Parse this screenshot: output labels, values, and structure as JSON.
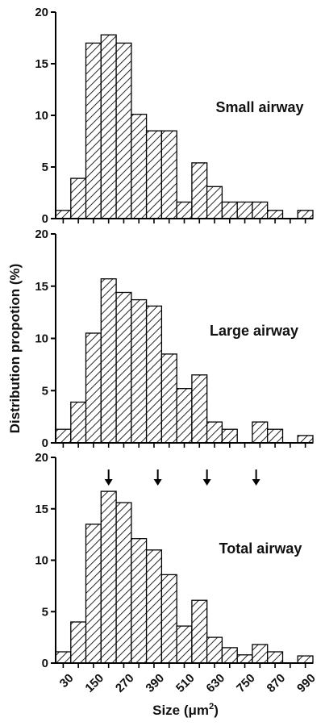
{
  "y_axis_title": "Distribution propotion (%)",
  "x_axis_title": {
    "prefix": "Size (",
    "unit": "μm",
    "power": "2",
    "suffix": ")"
  },
  "chart_data": [
    {
      "type": "bar",
      "panel_label": "Small airway",
      "xlabel": "Size (μm2)",
      "ylabel": "Distribution propotion (%)",
      "ylim": [
        0,
        20
      ],
      "yticks": [
        "0",
        "5",
        "10",
        "15",
        "20"
      ],
      "x": [
        30,
        90,
        150,
        210,
        270,
        330,
        390,
        450,
        510,
        570,
        630,
        690,
        750,
        810,
        870,
        930,
        990
      ],
      "values": [
        0.8,
        3.9,
        17.0,
        17.8,
        17.0,
        10.1,
        8.5,
        8.5,
        1.6,
        5.4,
        3.1,
        1.6,
        1.6,
        1.6,
        0.8,
        0,
        0.8
      ],
      "grid": false
    },
    {
      "type": "bar",
      "panel_label": "Large airway",
      "xlabel": "Size (μm2)",
      "ylabel": "Distribution propotion (%)",
      "ylim": [
        0,
        20
      ],
      "yticks": [
        "0",
        "5",
        "10",
        "15",
        "20"
      ],
      "x": [
        30,
        90,
        150,
        210,
        270,
        330,
        390,
        450,
        510,
        570,
        630,
        690,
        750,
        810,
        870,
        930,
        990
      ],
      "values": [
        1.3,
        3.9,
        10.5,
        15.7,
        14.4,
        13.7,
        13.1,
        8.5,
        5.2,
        6.5,
        2.0,
        1.3,
        0,
        2.0,
        1.3,
        0,
        0.7
      ],
      "grid": false
    },
    {
      "type": "bar",
      "panel_label": "Total airway",
      "xlabel": "Size (μm2)",
      "ylabel": "Distribution propotion (%)",
      "ylim": [
        0,
        20
      ],
      "yticks": [
        "0",
        "5",
        "10",
        "15",
        "20"
      ],
      "x": [
        30,
        90,
        150,
        210,
        270,
        330,
        390,
        450,
        510,
        570,
        630,
        690,
        750,
        810,
        870,
        930,
        990
      ],
      "xtick_labels": [
        "30",
        "150",
        "270",
        "390",
        "510",
        "630",
        "750",
        "870",
        "990"
      ],
      "values": [
        1.1,
        4.0,
        13.5,
        16.7,
        15.6,
        12.1,
        11.0,
        8.6,
        3.6,
        6.1,
        2.5,
        1.5,
        0.8,
        1.8,
        1.1,
        0,
        0.7
      ],
      "arrows_at_x": [
        210,
        405,
        600,
        795
      ],
      "grid": false
    }
  ]
}
